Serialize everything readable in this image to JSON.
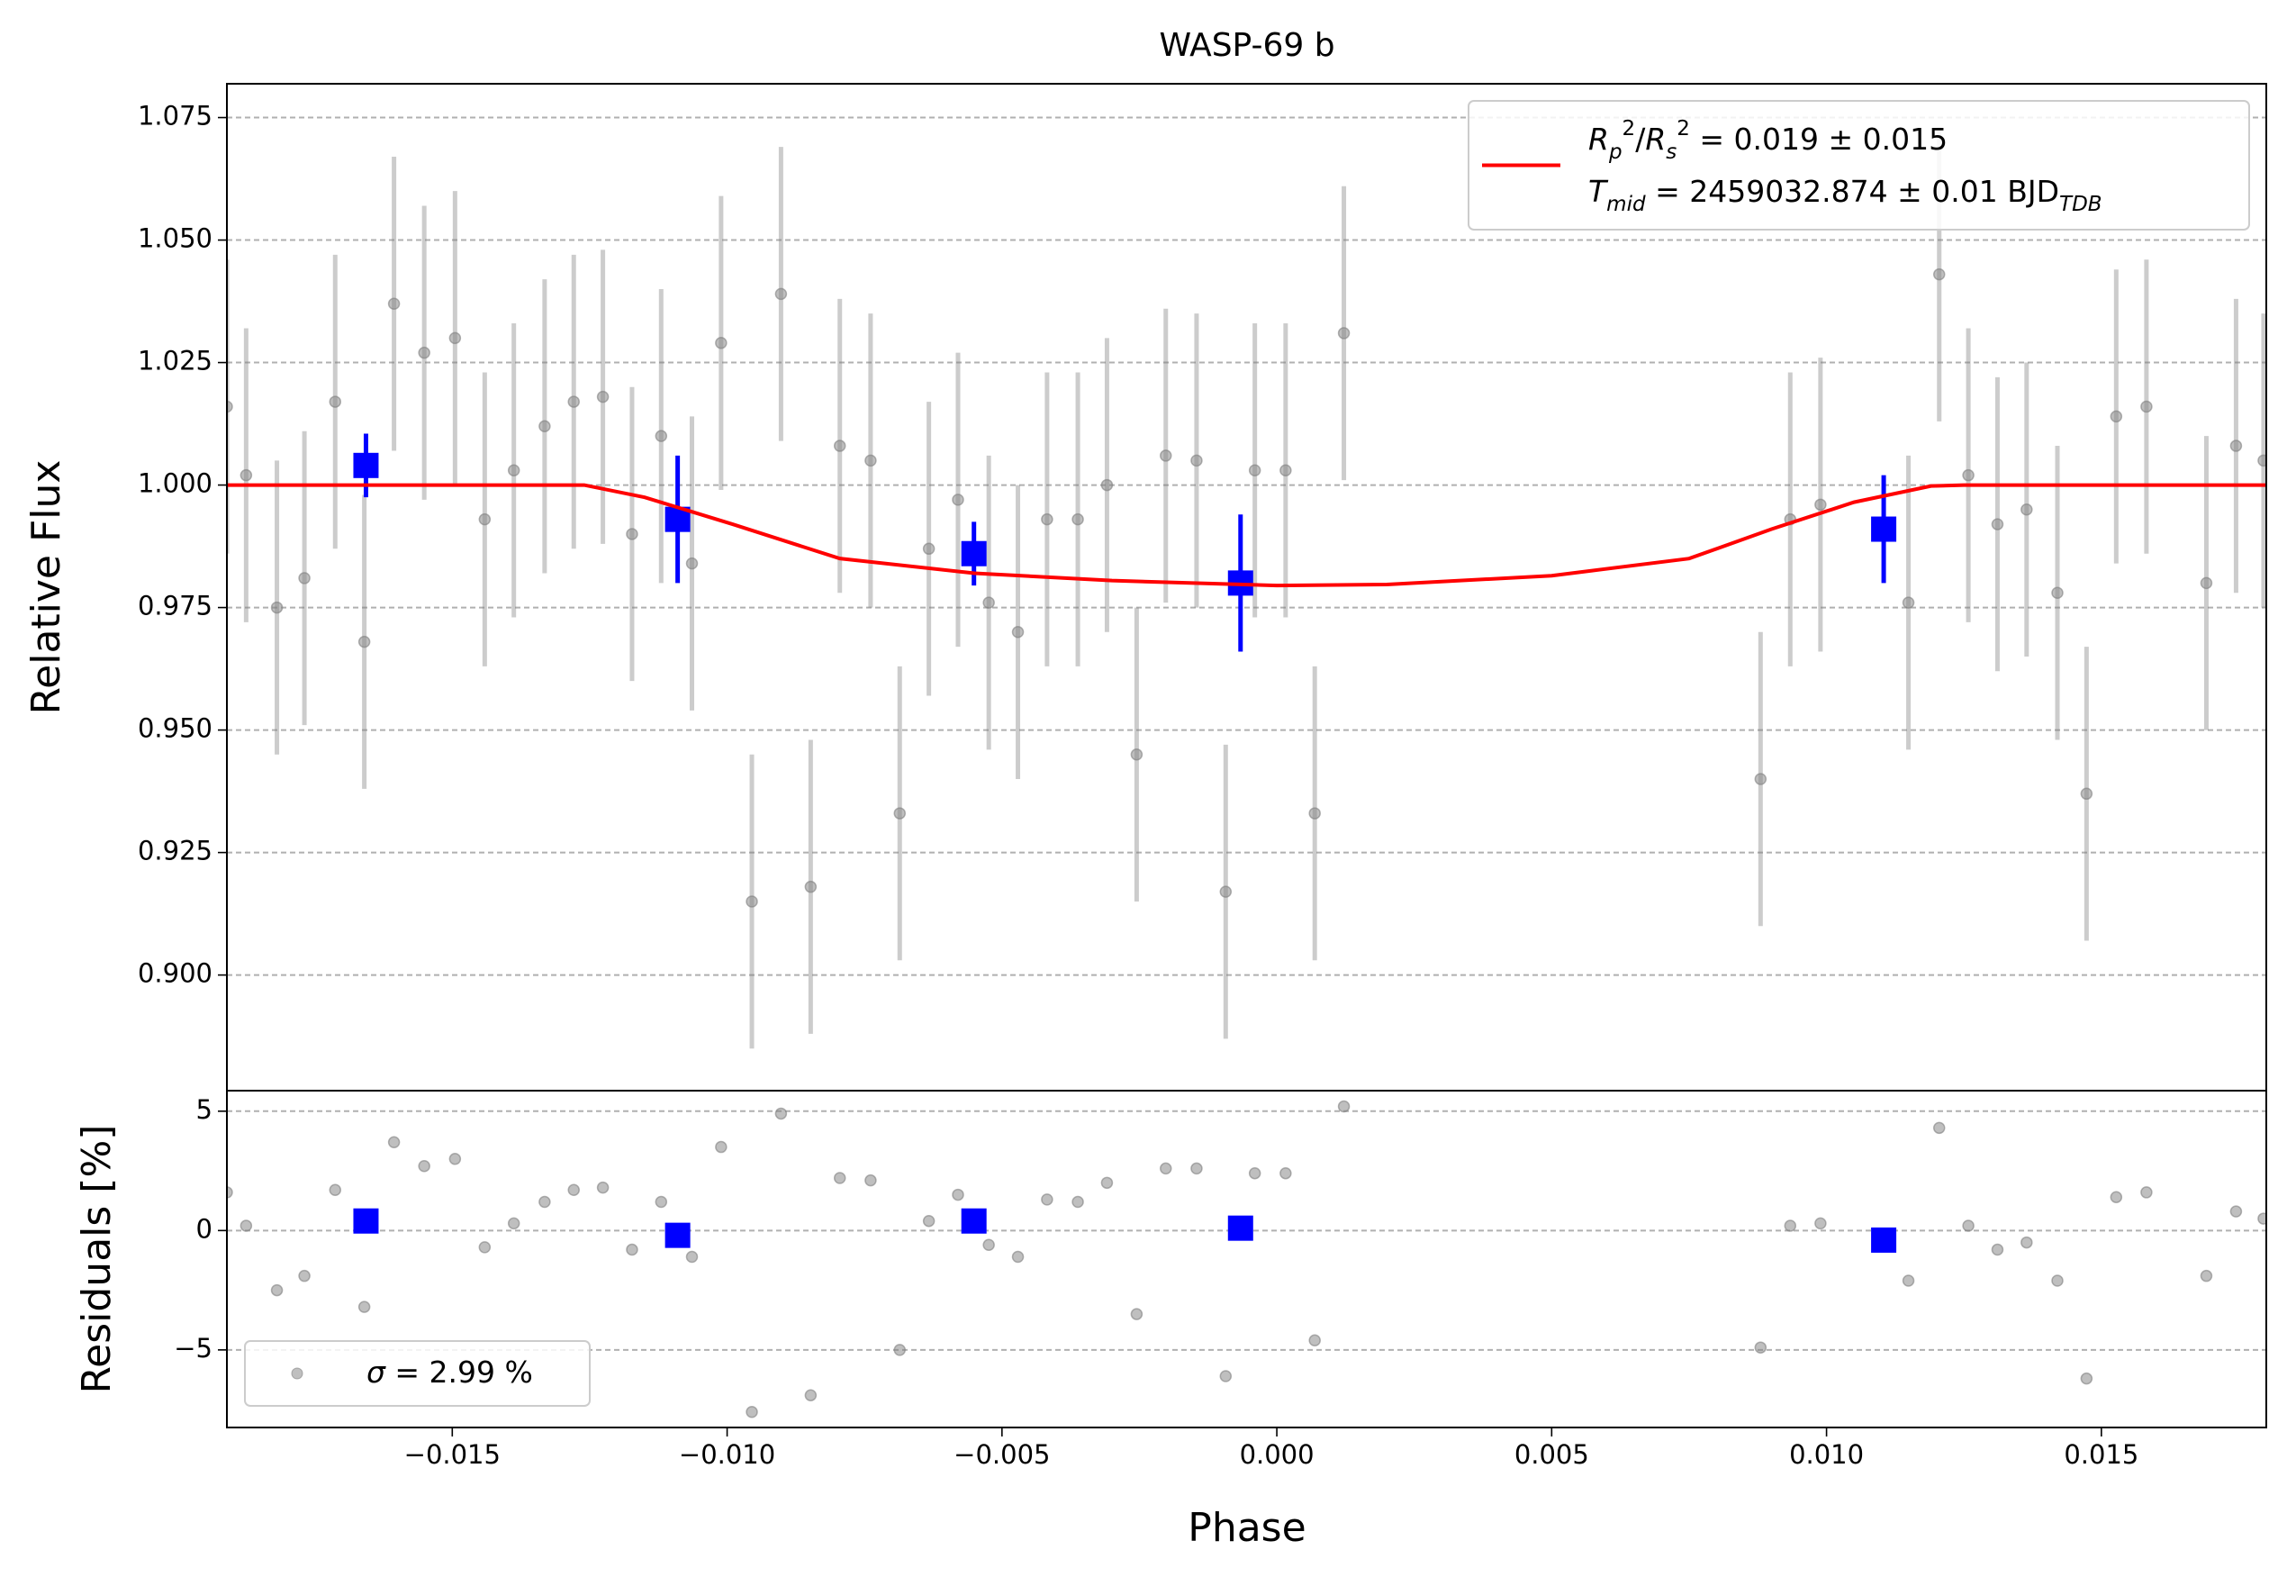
{
  "chart_data": [
    {
      "type": "scatter",
      "title": "WASP-69 b",
      "ylabel": "Relative Flux",
      "xlim": [
        -0.0191,
        0.018
      ],
      "ylim": [
        0.8764,
        1.0819
      ],
      "yticks": [
        {
          "value": 0.9,
          "label": "0.900"
        },
        0.925,
        {
          "value": 0.95,
          "label": "0.950"
        },
        0.975,
        {
          "value": 1.0,
          "label": "1.000"
        },
        1.025,
        {
          "value": 1.05,
          "label": "1.050"
        },
        1.075
      ],
      "grid": true,
      "legend": "upper right",
      "series": [
        {
          "marker": "circle",
          "color": "#808080",
          "error": 0.03,
          "x": [
            -0.0191,
            -0.01875,
            -0.01819,
            -0.01769,
            -0.01713,
            -0.0166,
            -0.01606,
            -0.01551,
            -0.01495,
            -0.01441,
            -0.01388,
            -0.01332,
            -0.01279,
            -0.01226,
            -0.01173,
            -0.0112,
            -0.01064,
            -0.01011,
            -0.00955,
            -0.00902,
            -0.00848,
            -0.00795,
            -0.00739,
            -0.00686,
            -0.00633,
            -0.0058,
            -0.00524,
            -0.00471,
            -0.00418,
            -0.00362,
            -0.00309,
            -0.00255,
            -0.00202,
            -0.00146,
            -0.00093,
            -0.0004,
            0.00016,
            0.00069,
            0.00122,
            0.0088,
            0.00934,
            0.00989,
            0.01149,
            0.01205,
            0.01258,
            0.01311,
            0.01364,
            0.0142,
            0.01473,
            0.01527,
            0.01582,
            0.01691,
            0.01745,
            0.01795
          ],
          "values": [
            1.016,
            1.002,
            0.975,
            0.981,
            1.017,
            0.968,
            1.037,
            1.027,
            1.03,
            0.993,
            1.003,
            1.012,
            1.017,
            1.018,
            0.99,
            1.01,
            0.984,
            1.029,
            0.915,
            1.039,
            0.918,
            1.008,
            1.005,
            0.933,
            0.987,
            0.997,
            0.976,
            0.97,
            0.993,
            0.993,
            1.0,
            0.945,
            1.006,
            1.005,
            0.917,
            1.003,
            1.003,
            0.933,
            1.031,
            0.94,
            0.993,
            0.996,
            0.976,
            1.043,
            1.002,
            0.992,
            0.995,
            0.978,
            0.937,
            1.014,
            1.016,
            0.98,
            1.008,
            1.005
          ]
        },
        {
          "marker": "square",
          "color": "#0000ff",
          "x": [
            -0.01657,
            -0.0109,
            -0.00551,
            -0.00066,
            0.01104
          ],
          "values": [
            1.004,
            0.993,
            0.986,
            0.98,
            0.991
          ],
          "errors": [
            0.0065,
            0.013,
            0.0065,
            0.014,
            0.011
          ]
        },
        {
          "type": "line",
          "color": "#ff0000",
          "x": [
            -0.0191,
            -0.0126,
            -0.0115,
            -0.0099,
            -0.00795,
            -0.0055,
            -0.003,
            0.0,
            0.002,
            0.005,
            0.0075,
            0.009,
            0.0105,
            0.0119,
            0.0125,
            0.018
          ],
          "values": [
            1.0,
            1.0,
            0.9975,
            0.992,
            0.985,
            0.982,
            0.9805,
            0.9795,
            0.9797,
            0.9815,
            0.985,
            0.991,
            0.9965,
            0.9998,
            1.0,
            1.0
          ],
          "label_lines": [
            [
              [
                "R",
                "it"
              ],
              [
                "p",
                "sub"
              ],
              [
                "2",
                "sup"
              ],
              [
                "/",
                "plain"
              ],
              [
                "R",
                "it"
              ],
              [
                "s",
                "sub"
              ],
              [
                "2",
                "sup"
              ],
              [
                " = 0.019 ± 0.015",
                "plain"
              ]
            ],
            [
              [
                "T",
                "it"
              ],
              [
                "mid",
                "sub"
              ],
              [
                " = 2459032.874 ± 0.01 BJD",
                "plain"
              ],
              [
                "TDB",
                "sub"
              ]
            ]
          ]
        }
      ]
    },
    {
      "type": "scatter",
      "ylabel": "Residuals [%]",
      "xlabel": "Phase",
      "xlim": [
        -0.0191,
        0.018
      ],
      "ylim": [
        -8.25,
        5.86
      ],
      "xticks": [
        {
          "value": -0.015,
          "label": "−0.015"
        },
        {
          "value": -0.01,
          "label": "−0.010"
        },
        {
          "value": -0.005,
          "label": "−0.005"
        },
        {
          "value": 0.0,
          "label": "0.000"
        },
        0.005,
        {
          "value": 0.01,
          "label": "0.010"
        },
        0.015
      ],
      "yticks": [
        {
          "value": -5,
          "label": "−5"
        },
        0,
        5
      ],
      "grid": true,
      "legend": "lower left",
      "series": [
        {
          "marker": "circle",
          "color": "#808080",
          "x": [
            -0.0191,
            -0.01875,
            -0.01819,
            -0.01769,
            -0.01713,
            -0.0166,
            -0.01606,
            -0.01551,
            -0.01495,
            -0.01441,
            -0.01388,
            -0.01332,
            -0.01279,
            -0.01226,
            -0.01173,
            -0.0112,
            -0.01064,
            -0.01011,
            -0.00955,
            -0.00902,
            -0.00848,
            -0.00795,
            -0.00739,
            -0.00686,
            -0.00633,
            -0.0058,
            -0.00524,
            -0.00471,
            -0.00418,
            -0.00362,
            -0.00309,
            -0.00255,
            -0.00202,
            -0.00146,
            -0.00093,
            -0.0004,
            0.00016,
            0.00069,
            0.00122,
            0.0088,
            0.00934,
            0.00989,
            0.01149,
            0.01205,
            0.01258,
            0.01311,
            0.01364,
            0.0142,
            0.01473,
            0.01527,
            0.01582,
            0.01691,
            0.01745,
            0.01795
          ],
          "values": [
            1.6,
            0.2,
            -2.5,
            -1.9,
            1.7,
            -3.2,
            3.7,
            2.7,
            3.0,
            -0.7,
            0.3,
            1.2,
            1.7,
            1.8,
            -0.8,
            1.2,
            -1.1,
            3.5,
            -7.6,
            4.9,
            -6.9,
            2.2,
            2.1,
            -5.0,
            0.4,
            1.5,
            -0.6,
            -1.1,
            1.3,
            1.2,
            2.0,
            -3.5,
            2.6,
            2.6,
            -6.1,
            2.4,
            2.4,
            -4.6,
            5.2,
            -4.9,
            0.2,
            0.3,
            -2.1,
            4.3,
            0.2,
            -0.8,
            -0.5,
            -2.1,
            -6.2,
            1.4,
            1.6,
            -1.9,
            0.8,
            0.5
          ],
          "label_lines": [
            [
              [
                "σ",
                "it"
              ],
              [
                " = 2.99 %",
                "plain"
              ]
            ]
          ]
        },
        {
          "marker": "square",
          "color": "#0000ff",
          "x": [
            -0.01657,
            -0.0109,
            -0.00551,
            -0.00066,
            0.01104
          ],
          "values": [
            0.4,
            -0.2,
            0.4,
            0.1,
            -0.4
          ]
        }
      ]
    }
  ]
}
